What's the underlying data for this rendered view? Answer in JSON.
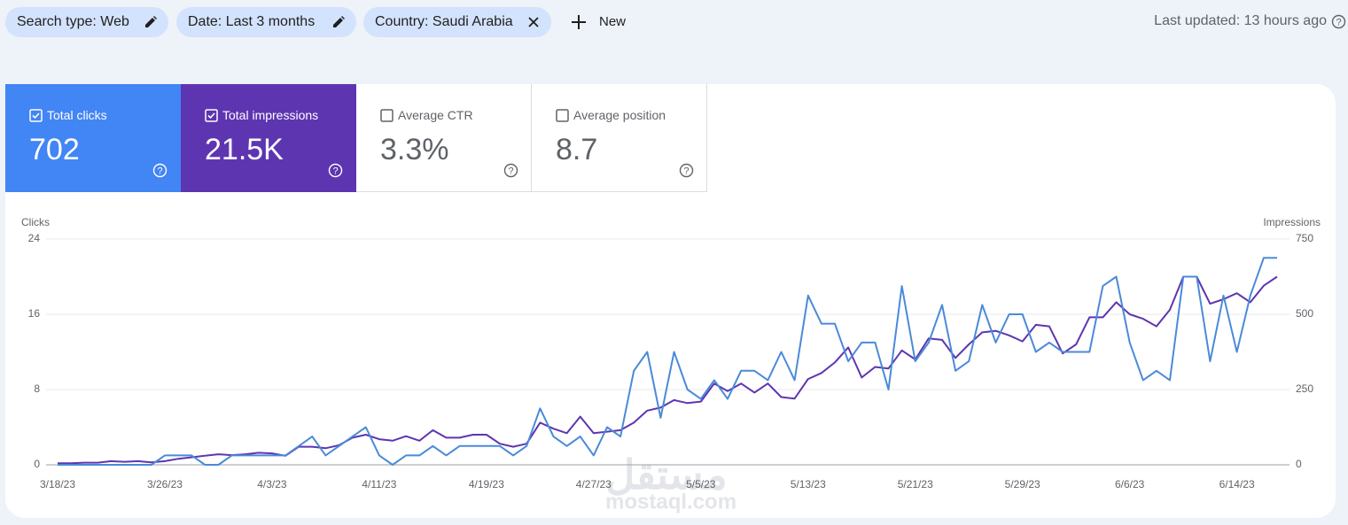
{
  "filters": [
    "Search type: Web",
    "Date: Last 3 months",
    "Country: Saudi Arabia"
  ],
  "new_button": "New",
  "last_updated": "Last updated: 13 hours ago",
  "metrics": [
    {
      "label": "Total clicks",
      "value": "702",
      "checked": true,
      "color": "#4285f4"
    },
    {
      "label": "Total impressions",
      "value": "21.5K",
      "checked": true,
      "color": "#5e35b1"
    },
    {
      "label": "Average CTR",
      "value": "3.3%",
      "checked": false
    },
    {
      "label": "Average position",
      "value": "8.7",
      "checked": false
    }
  ],
  "watermark": [
    "مستقل",
    "mostaql.com"
  ],
  "chart_data": {
    "type": "line",
    "y_label": "Clicks",
    "y2_label": "Impressions",
    "categories": [
      "3/18/23",
      null,
      null,
      null,
      null,
      null,
      null,
      null,
      "3/26/23",
      null,
      null,
      null,
      null,
      null,
      null,
      null,
      "4/3/23",
      null,
      null,
      null,
      null,
      null,
      null,
      null,
      "4/11/23",
      null,
      null,
      null,
      null,
      null,
      null,
      null,
      "4/19/23",
      null,
      null,
      null,
      null,
      null,
      null,
      null,
      "4/27/23",
      null,
      null,
      null,
      null,
      null,
      null,
      null,
      "5/5/23",
      null,
      null,
      null,
      null,
      null,
      null,
      null,
      "5/13/23",
      null,
      null,
      null,
      null,
      null,
      null,
      null,
      "5/21/23",
      null,
      null,
      null,
      null,
      null,
      null,
      null,
      "5/29/23",
      null,
      null,
      null,
      null,
      null,
      null,
      null,
      "6/6/23",
      null,
      null,
      null,
      null,
      null,
      null,
      null,
      "6/14/23",
      null,
      null,
      null
    ],
    "series": [
      {
        "color": "#4a8ad8",
        "values": [
          0,
          0,
          0,
          0,
          0,
          0,
          0,
          0,
          1,
          1,
          1,
          0,
          0,
          1,
          1,
          1,
          1,
          1,
          2,
          3,
          1,
          2,
          3,
          4,
          1,
          0,
          1,
          1,
          2,
          1,
          2,
          2,
          2,
          2,
          1,
          2,
          6,
          3,
          2,
          3,
          1,
          4,
          3,
          10,
          12,
          5,
          12,
          8,
          7,
          9,
          7,
          10,
          10,
          9,
          12,
          9,
          18,
          15,
          15,
          11,
          13,
          13,
          8,
          19,
          11,
          13,
          17,
          10,
          11,
          17,
          13,
          16,
          16,
          12,
          13,
          12,
          12,
          12,
          19,
          20,
          13,
          9,
          10,
          9,
          20,
          20,
          11,
          18,
          12,
          18,
          22,
          22
        ]
      },
      {
        "color": "#5e35b1",
        "axis": "y2",
        "values": [
          5,
          5,
          7,
          7,
          12,
          10,
          12,
          8,
          12,
          20,
          25,
          30,
          35,
          32,
          35,
          40,
          38,
          30,
          60,
          60,
          55,
          65,
          90,
          100,
          85,
          80,
          95,
          80,
          115,
          90,
          90,
          100,
          100,
          70,
          60,
          70,
          140,
          120,
          105,
          160,
          105,
          110,
          115,
          140,
          180,
          190,
          215,
          205,
          210,
          270,
          245,
          270,
          240,
          270,
          225,
          220,
          285,
          305,
          340,
          390,
          290,
          325,
          320,
          380,
          350,
          420,
          415,
          355,
          400,
          440,
          445,
          430,
          410,
          465,
          460,
          370,
          400,
          490,
          490,
          540,
          500,
          485,
          460,
          515,
          625,
          625,
          535,
          550,
          570,
          540,
          595,
          625
        ]
      }
    ],
    "ylim": [
      0,
      24
    ],
    "yticks": [
      0,
      8,
      16,
      24
    ],
    "y2lim": [
      0,
      750
    ],
    "y2ticks": [
      0,
      250,
      500,
      750
    ],
    "grid": true
  }
}
